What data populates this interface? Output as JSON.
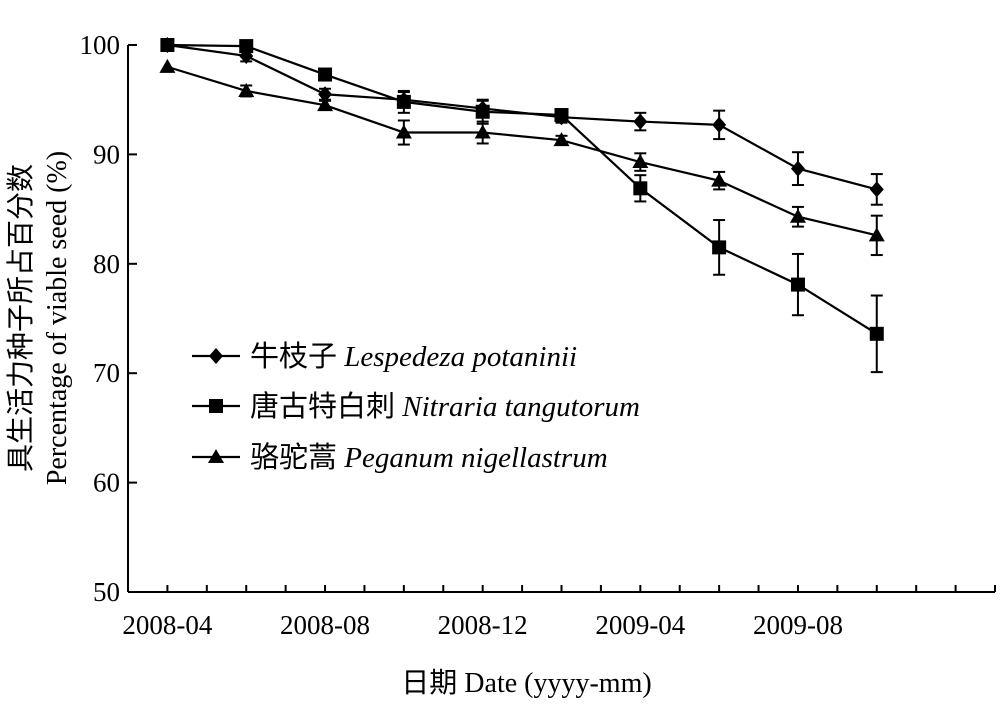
{
  "chart_data": {
    "type": "line",
    "title": "",
    "xlabel": "日期 Date (yyyy-mm)",
    "ylabel_cn": "具生活力种子所占百分数",
    "ylabel_en": "Percentage of viable seed (%)",
    "x_ticks": [
      "2008-04",
      "2008-08",
      "2008-12",
      "2009-04",
      "2009-08"
    ],
    "y_ticks": [
      "50",
      "60",
      "70",
      "80",
      "90",
      "100"
    ],
    "xlim": [
      "2008-03",
      "2010-01"
    ],
    "ylim": [
      50,
      100
    ],
    "x": [
      "2008-04",
      "2008-06",
      "2008-08",
      "2008-10",
      "2008-12",
      "2009-02",
      "2009-04",
      "2009-06",
      "2009-08",
      "2009-10"
    ],
    "legend_position": "left-middle",
    "grid": false,
    "series": [
      {
        "name_cn": "牛枝子",
        "name_latin": "Lespedeza  potaninii",
        "marker": "diamond",
        "values": [
          100.0,
          99.0,
          95.5,
          95.0,
          94.2,
          93.4,
          93.0,
          92.7,
          88.7,
          86.8
        ],
        "errors": [
          0,
          0.5,
          0.5,
          0.7,
          0.7,
          0.5,
          0.8,
          1.3,
          1.5,
          1.4
        ]
      },
      {
        "name_cn": "唐古特白刺",
        "name_latin": "Nitraria  tangutorum",
        "marker": "square",
        "values": [
          100.0,
          99.9,
          97.3,
          94.8,
          93.9,
          93.6,
          86.9,
          81.5,
          78.1,
          73.6
        ],
        "errors": [
          0,
          0,
          0.4,
          1.0,
          1.1,
          0.4,
          1.2,
          2.5,
          2.8,
          3.5
        ]
      },
      {
        "name_cn": "骆驼蒿",
        "name_latin": "Peganum nigellastrum",
        "marker": "triangle",
        "values": [
          98.0,
          95.8,
          94.5,
          92.0,
          92.0,
          91.3,
          89.3,
          87.6,
          84.3,
          82.6
        ],
        "errors": [
          0,
          0.5,
          0.4,
          1.1,
          1.0,
          0.4,
          0.8,
          0.8,
          0.9,
          1.8
        ]
      }
    ]
  }
}
